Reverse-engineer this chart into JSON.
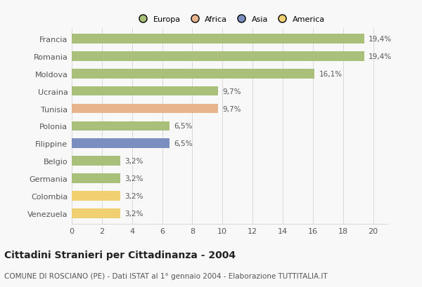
{
  "countries": [
    "Francia",
    "Romania",
    "Moldova",
    "Ucraina",
    "Tunisia",
    "Polonia",
    "Filippine",
    "Belgio",
    "Germania",
    "Colombia",
    "Venezuela"
  ],
  "values": [
    19.4,
    19.4,
    16.1,
    9.7,
    9.7,
    6.5,
    6.5,
    3.2,
    3.2,
    3.2,
    3.2
  ],
  "labels": [
    "19,4%",
    "19,4%",
    "16,1%",
    "9,7%",
    "9,7%",
    "6,5%",
    "6,5%",
    "3,2%",
    "3,2%",
    "3,2%",
    "3,2%"
  ],
  "colors": [
    "#a8c07a",
    "#a8c07a",
    "#a8c07a",
    "#a8c07a",
    "#e8b48c",
    "#a8c07a",
    "#7a8fc0",
    "#a8c07a",
    "#a8c07a",
    "#f0d070",
    "#f0d070"
  ],
  "legend": [
    {
      "label": "Europa",
      "color": "#a8c07a"
    },
    {
      "label": "Africa",
      "color": "#e8b48c"
    },
    {
      "label": "Asia",
      "color": "#7a8fc0"
    },
    {
      "label": "America",
      "color": "#f0d070"
    }
  ],
  "xlim": [
    0,
    21
  ],
  "xticks": [
    0,
    2,
    4,
    6,
    8,
    10,
    12,
    14,
    16,
    18,
    20
  ],
  "title": "Cittadini Stranieri per Cittadinanza - 2004",
  "subtitle": "COMUNE DI ROSCIANO (PE) - Dati ISTAT al 1° gennaio 2004 - Elaborazione TUTTITALIA.IT",
  "background_color": "#f8f8f8",
  "bar_height": 0.55,
  "grid_color": "#d8d8d8",
  "title_fontsize": 10,
  "subtitle_fontsize": 7.5,
  "label_fontsize": 7.5,
  "tick_fontsize": 8,
  "ytick_fontsize": 8
}
